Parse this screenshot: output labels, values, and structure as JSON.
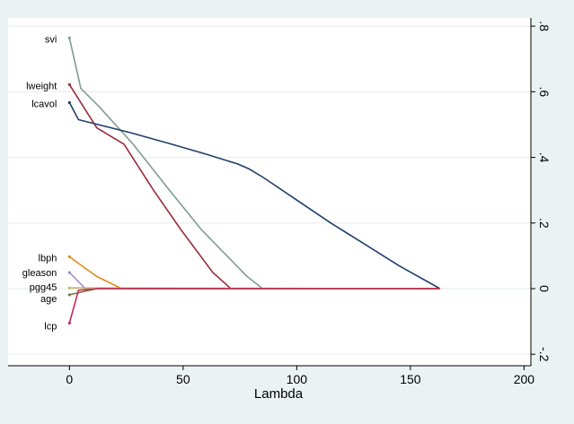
{
  "chart_data": {
    "type": "line",
    "title": "",
    "xlabel": "Lambda",
    "ylabel": "",
    "xlim": [
      -27,
      203
    ],
    "ylim": [
      -0.235,
      0.825
    ],
    "x_ticks": [
      0,
      50,
      100,
      150,
      200
    ],
    "x_tick_labels": [
      "0",
      "50",
      "100",
      "150",
      "200"
    ],
    "y_ticks": [
      -0.2,
      0,
      0.2,
      0.4,
      0.6,
      0.8
    ],
    "y_tick_labels": [
      "-.2",
      "0",
      ".2",
      ".4",
      ".6",
      ".8"
    ],
    "y_axis_position": "right",
    "y_tick_label_rotation": "vertical",
    "grid": "horizontal",
    "series": [
      {
        "name": "svi",
        "color": "#7f9d8f",
        "x": [
          0,
          5,
          13,
          28,
          44,
          58,
          78,
          85,
          163
        ],
        "y": [
          0.764,
          0.61,
          0.555,
          0.44,
          0.3,
          0.18,
          0.038,
          0,
          0
        ]
      },
      {
        "name": "lweight",
        "color": "#9a2a3a",
        "x": [
          0,
          12,
          24,
          37,
          49,
          63,
          71,
          163
        ],
        "y": [
          0.622,
          0.49,
          0.44,
          0.3,
          0.18,
          0.05,
          0,
          0
        ]
      },
      {
        "name": "lcavol",
        "color": "#1f3f6a",
        "x": [
          0,
          4,
          27,
          45,
          60,
          74,
          79,
          85,
          100,
          115,
          130,
          145,
          163
        ],
        "y": [
          0.567,
          0.515,
          0.475,
          0.44,
          0.41,
          0.38,
          0.365,
          0.34,
          0.27,
          0.2,
          0.135,
          0.07,
          0
        ]
      },
      {
        "name": "lbph",
        "color": "#e08a1e",
        "x": [
          0,
          12,
          23,
          163
        ],
        "y": [
          0.097,
          0.037,
          0,
          0
        ]
      },
      {
        "name": "gleason",
        "color": "#a08ac8",
        "x": [
          0,
          7,
          163
        ],
        "y": [
          0.049,
          0,
          0
        ]
      },
      {
        "name": "pgg45",
        "color": "#c9b46b",
        "x": [
          0,
          163
        ],
        "y": [
          0.002,
          0
        ]
      },
      {
        "name": "age",
        "color": "#6a7a4e",
        "x": [
          0,
          12,
          163
        ],
        "y": [
          -0.019,
          0,
          0
        ]
      },
      {
        "name": "lcp",
        "color": "#c8285a",
        "x": [
          0,
          4,
          13,
          163
        ],
        "y": [
          -0.105,
          -0.005,
          0,
          0
        ]
      }
    ],
    "line_labels": [
      {
        "series": "svi",
        "text": "svi"
      },
      {
        "series": "lweight",
        "text": "lweight"
      },
      {
        "series": "lcavol",
        "text": "lcavol"
      },
      {
        "series": "lbph",
        "text": "lbph"
      },
      {
        "series": "gleason",
        "text": "gleason"
      },
      {
        "series": "pgg45",
        "text": "pgg45"
      },
      {
        "series": "age",
        "text": "age"
      },
      {
        "series": "lcp",
        "text": "lcp"
      }
    ]
  }
}
